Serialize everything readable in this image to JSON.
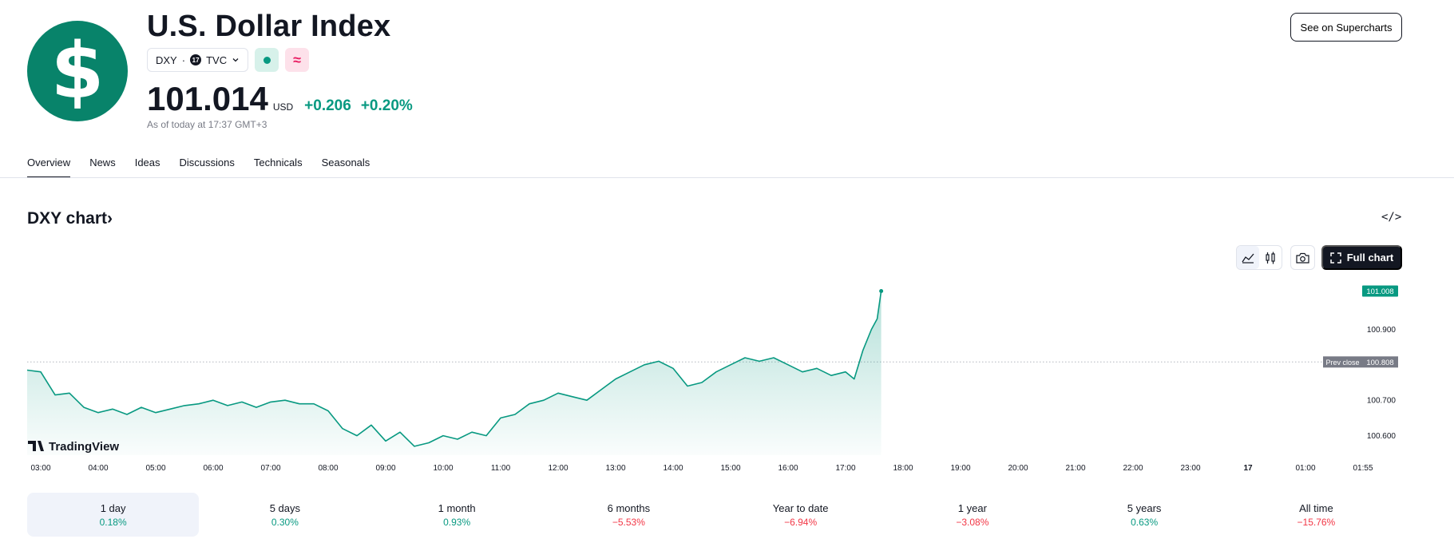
{
  "header": {
    "logo_glyph": "$",
    "title": "U.S. Dollar Index",
    "symbol": "DXY",
    "separator": "·",
    "exchange": "TVC",
    "exchange_icon_text": "17",
    "price": "101.014",
    "currency": "USD",
    "change_abs": "+0.206",
    "change_pct": "+0.20%",
    "as_of": "As of today at 17:37 GMT+3",
    "market_status_icon": "market-open-dot-icon",
    "delayed_icon": "approx-icon",
    "see_button": "See on Supercharts"
  },
  "tabs": [
    "Overview",
    "News",
    "Ideas",
    "Discussions",
    "Technicals",
    "Seasonals"
  ],
  "active_tab": "Overview",
  "chart_section": {
    "title": "DXY chart",
    "title_arrow": "›",
    "embed_icon_text": "</>",
    "full_chart_label": "Full chart",
    "watermark": "TradingView"
  },
  "colors": {
    "accent": "#089981",
    "logo_bg": "#08836a",
    "negative": "#f23645",
    "prev_close_label_bg": "#787b86"
  },
  "chart_data": {
    "type": "area",
    "x_ticks": [
      "03:00",
      "04:00",
      "05:00",
      "06:00",
      "07:00",
      "08:00",
      "09:00",
      "10:00",
      "11:00",
      "12:00",
      "13:00",
      "14:00",
      "15:00",
      "16:00",
      "17:00",
      "18:00",
      "19:00",
      "20:00",
      "21:00",
      "22:00",
      "23:00",
      "17",
      "01:00",
      "01:55"
    ],
    "y_ticks": [
      "100.900",
      "100.700",
      "100.600"
    ],
    "ylim": [
      100.545,
      101.025
    ],
    "last_value": "101.008",
    "prev_close_label": "Prev close",
    "prev_close": "100.808",
    "prev_close_value": 100.808,
    "series": [
      {
        "x": [
          2.75,
          3.0,
          3.25,
          3.5,
          3.75,
          4.0,
          4.25,
          4.5,
          4.75,
          5.0,
          5.25,
          5.5,
          5.75,
          6.0,
          6.25,
          6.5,
          6.75,
          7.0,
          7.25,
          7.5,
          7.75,
          8.0,
          8.25,
          8.5,
          8.75,
          9.0,
          9.25,
          9.5,
          9.75,
          10.0,
          10.25,
          10.5,
          10.75,
          11.0,
          11.25,
          11.5,
          11.75,
          12.0,
          12.25,
          12.5,
          12.75,
          13.0,
          13.25,
          13.5,
          13.75,
          14.0,
          14.25,
          14.5,
          14.75,
          15.0,
          15.25,
          15.5,
          15.75,
          16.0,
          16.25,
          16.5,
          16.75,
          17.0,
          17.15,
          17.3,
          17.45,
          17.55,
          17.62
        ],
        "y": [
          100.785,
          100.78,
          100.715,
          100.72,
          100.68,
          100.665,
          100.675,
          100.66,
          100.68,
          100.665,
          100.675,
          100.685,
          100.69,
          100.7,
          100.685,
          100.695,
          100.68,
          100.695,
          100.7,
          100.69,
          100.69,
          100.67,
          100.62,
          100.6,
          100.63,
          100.585,
          100.61,
          100.57,
          100.58,
          100.6,
          100.59,
          100.61,
          100.6,
          100.65,
          100.66,
          100.69,
          100.7,
          100.72,
          100.71,
          100.7,
          100.73,
          100.76,
          100.78,
          100.8,
          100.81,
          100.79,
          100.74,
          100.75,
          100.78,
          100.8,
          100.82,
          100.81,
          100.82,
          100.8,
          100.78,
          100.79,
          100.77,
          100.78,
          100.76,
          100.84,
          100.9,
          100.93,
          101.008
        ]
      }
    ],
    "grid": false,
    "legend": "none"
  },
  "periods": [
    {
      "label": "1 day",
      "value": "0.18%",
      "dir": "up"
    },
    {
      "label": "5 days",
      "value": "0.30%",
      "dir": "up"
    },
    {
      "label": "1 month",
      "value": "0.93%",
      "dir": "up"
    },
    {
      "label": "6 months",
      "value": "−5.53%",
      "dir": "down"
    },
    {
      "label": "Year to date",
      "value": "−6.94%",
      "dir": "down"
    },
    {
      "label": "1 year",
      "value": "−3.08%",
      "dir": "down"
    },
    {
      "label": "5 years",
      "value": "0.63%",
      "dir": "up"
    },
    {
      "label": "All time",
      "value": "−15.76%",
      "dir": "down"
    }
  ],
  "active_period": "1 day"
}
